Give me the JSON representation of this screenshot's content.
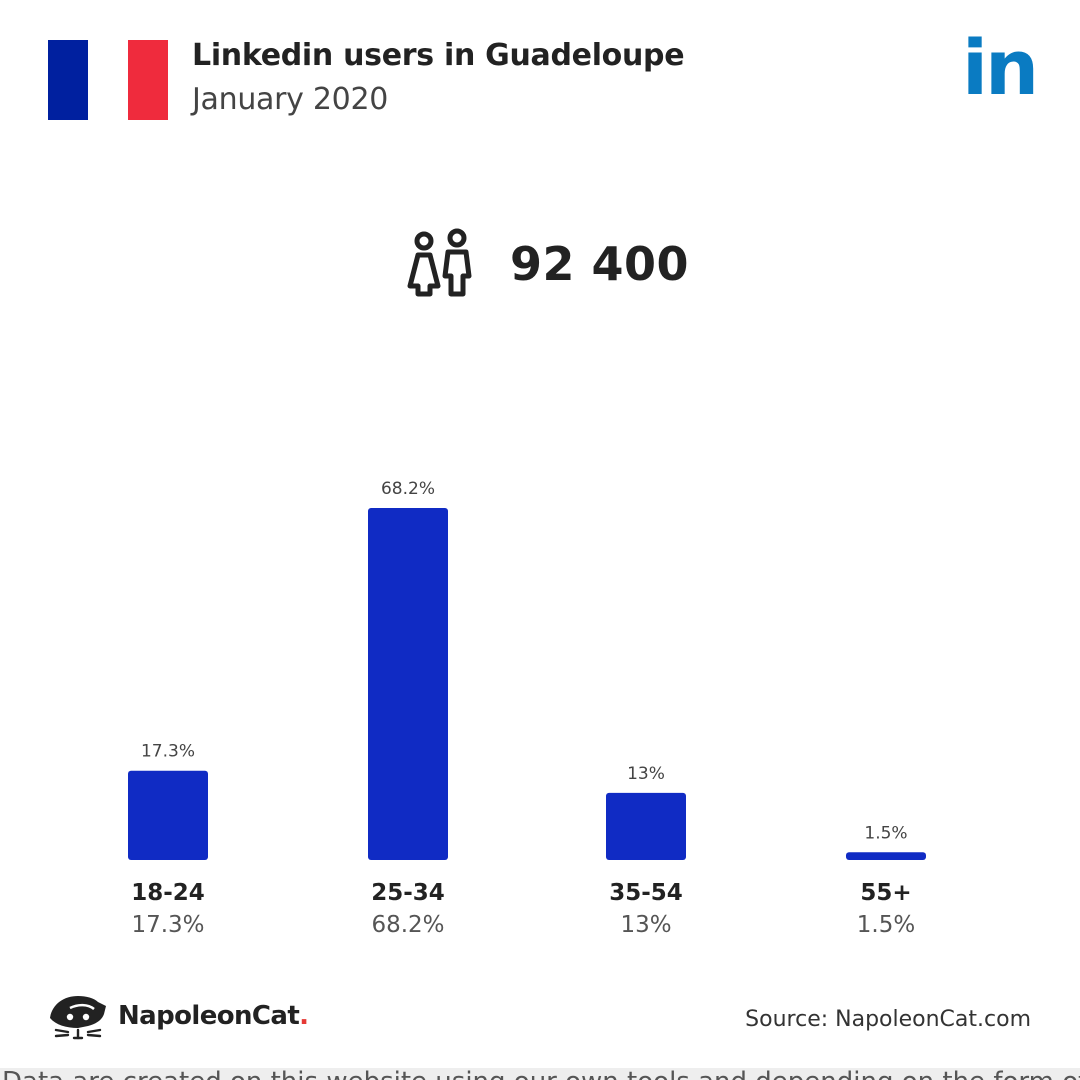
{
  "header": {
    "title": "Linkedin users in Guadeloupe",
    "subtitle": "January 2020",
    "logo_text": "in"
  },
  "colors": {
    "flag": [
      "#00209F",
      "#FFFFFF",
      "#EF2B3D"
    ],
    "linkedin": "#0A7BC2",
    "bar": "#102BC4",
    "text_dark": "#222222",
    "text_muted": "#555555"
  },
  "icons": {
    "users": "users-icon",
    "brand": "cat-logo-icon"
  },
  "total": {
    "value": "92 400"
  },
  "chart_data": {
    "type": "bar",
    "categories": [
      "18-24",
      "25-34",
      "35-54",
      "55+"
    ],
    "values": [
      17.3,
      68.2,
      13,
      1.5
    ],
    "value_labels": [
      "17.3%",
      "68.2%",
      "13%",
      "1.5%"
    ],
    "unit": "%",
    "title": "",
    "xlabel": "",
    "ylabel": "",
    "ylim": [
      0,
      68.2
    ],
    "grid": false,
    "legend": "none"
  },
  "footer": {
    "brand_name": "NapoleonCat",
    "brand_dot": ".",
    "source": "Source: NapoleonCat.com",
    "note": "Data are created on this website using our own tools and depending on the form of the respective social media."
  }
}
